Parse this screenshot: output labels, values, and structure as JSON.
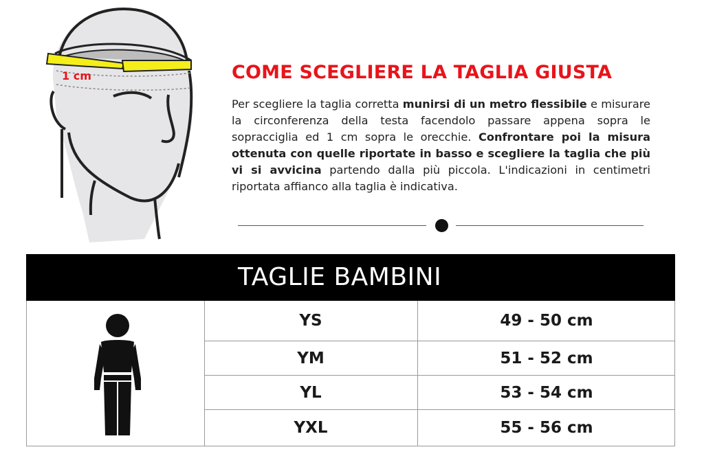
{
  "illustration": {
    "label": "1 cm",
    "tape_color": "#f4ee1a",
    "label_color": "#e8141b"
  },
  "title": "COME SCEGLIERE LA TAGLIA GIUSTA",
  "intro": {
    "p1": "Per scegliere la taglia corretta ",
    "b1": "munirsi di un metro flessibile",
    "p2": " e misurare la circonferenza della testa facendolo passare appena sopra le sopracciglia ed 1 cm sopra le orecchie. ",
    "b2": "Confrontare poi la misura ottenuta con quelle riportate in basso e scegliere la taglia che più vi si avvicina",
    "p3": " partendo dalla più piccola. L'indicazioni in centimetri riportata affianco alla taglia è indicativa."
  },
  "table": {
    "header": "TAGLIE BAMBINI",
    "rows": [
      {
        "size": "YS",
        "measure": "49 - 50 cm"
      },
      {
        "size": "YM",
        "measure": "51 - 52 cm"
      },
      {
        "size": "YL",
        "measure": "53 - 54 cm"
      },
      {
        "size": "YXL",
        "measure": "55 - 56 cm"
      }
    ]
  },
  "colors": {
    "accent": "#e8141b",
    "header_bg": "#000000"
  }
}
